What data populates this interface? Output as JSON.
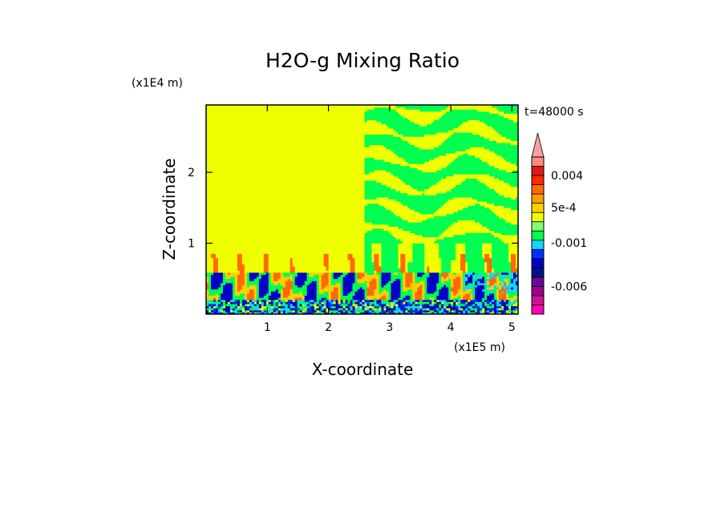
{
  "chart_data": {
    "type": "heatmap",
    "title": "H2O-g Mixing Ratio",
    "xlabel": "X-coordinate",
    "ylabel": "Z-coordinate",
    "x_unit": "(x1E5 m)",
    "y_unit": "(x1E4 m)",
    "time_label": "t=48000 s",
    "xlim": [
      0,
      5.1
    ],
    "ylim": [
      0,
      2.95
    ],
    "x_ticks": [
      1,
      2,
      3,
      4,
      5
    ],
    "x_tick_labels": [
      "1",
      "2",
      "3",
      "4",
      "5"
    ],
    "y_ticks": [
      1,
      2
    ],
    "y_tick_labels": [
      "1",
      "2"
    ],
    "colorbar": {
      "levels": [
        -0.009,
        -0.008,
        -0.007,
        -0.006,
        -0.005,
        -0.004,
        -0.003,
        -0.002,
        -0.001,
        -0.0005,
        0,
        0.0005,
        0.001,
        0.002,
        0.003,
        0.004,
        0.005,
        0.006
      ],
      "colors": [
        "#ff00bb",
        "#cc1199",
        "#a0008c",
        "#6a0a9a",
        "#00128a",
        "#0000c8",
        "#0030ff",
        "#10d8ff",
        "#00ff50",
        "#80ff70",
        "#f0ff00",
        "#ffd000",
        "#ff9c00",
        "#ff6a00",
        "#ff2a00",
        "#e01a10",
        "#ff8a80"
      ],
      "over_color": "#f7a0a0",
      "labels": [
        {
          "value": 0.004,
          "text": "0.004"
        },
        {
          "value": 0.0005,
          "text": "5e-4"
        },
        {
          "value": -0.001,
          "text": "-0.001"
        },
        {
          "value": -0.006,
          "text": "-0.006"
        }
      ]
    },
    "regions": {
      "left_background_value": 0,
      "left_background_extent_x": [
        0,
        2.57
      ],
      "right_background_value": -0.0005,
      "right_background_extent_x": [
        2.57,
        5.1
      ],
      "boundary_layer_top_z": 0.58,
      "plume_top_z": 1.0
    }
  }
}
